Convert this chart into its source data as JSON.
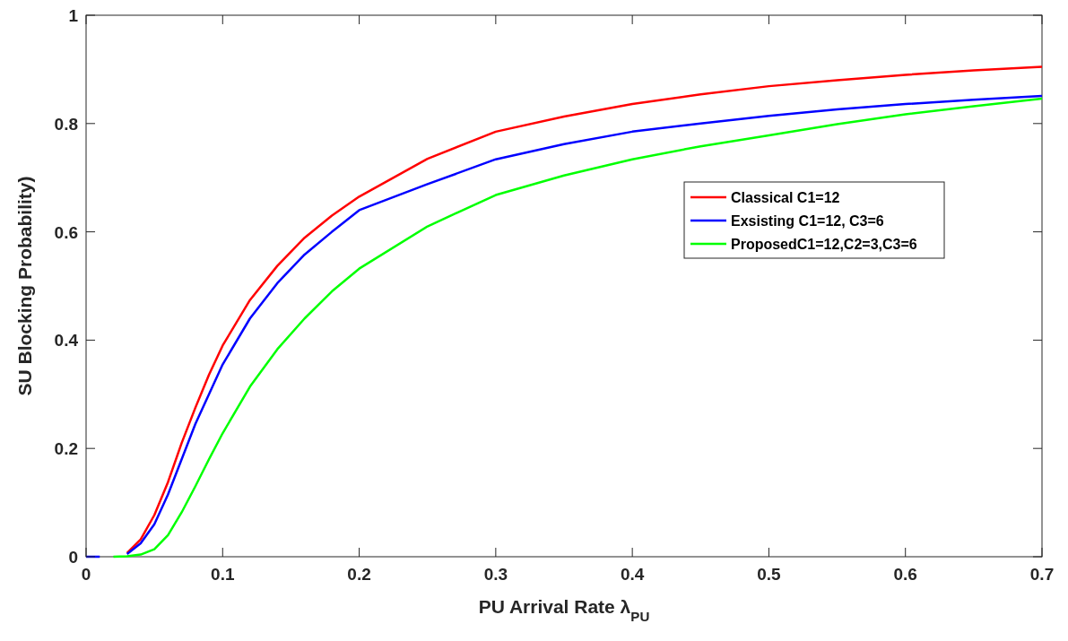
{
  "chart_data": {
    "type": "line",
    "xlabel": "PU Arrival Rate λ$_{PU}$",
    "ylabel": "SU Blocking Probability)",
    "x": [
      0,
      0.01,
      0.02,
      0.03,
      0.04,
      0.05,
      0.06,
      0.07,
      0.08,
      0.09,
      0.1,
      0.12,
      0.14,
      0.16,
      0.18,
      0.2,
      0.25,
      0.3,
      0.35,
      0.4,
      0.45,
      0.5,
      0.55,
      0.6,
      0.65,
      0.7
    ],
    "series": [
      {
        "name": "Classical C1=12",
        "color": "#ff0000",
        "values": [
          null,
          null,
          null,
          0.007,
          0.032,
          0.077,
          0.138,
          0.21,
          0.275,
          0.336,
          0.39,
          0.474,
          0.537,
          0.589,
          0.63,
          0.665,
          0.735,
          0.785,
          0.813,
          0.836,
          0.854,
          0.869,
          0.88,
          0.89,
          0.898,
          0.905
        ]
      },
      {
        "name": "Exsisting C1=12, C3=6",
        "color": "#0000ff",
        "values": [
          0,
          0,
          null,
          0.005,
          0.025,
          0.06,
          0.115,
          0.18,
          0.245,
          0.3,
          0.355,
          0.44,
          0.505,
          0.558,
          0.6,
          0.64,
          0.688,
          0.734,
          0.762,
          0.785,
          0.8,
          0.814,
          0.826,
          0.836,
          0.844,
          0.851
        ]
      },
      {
        "name": "ProposedC1=12,C2=3,C3=6",
        "color": "#00ff00",
        "values": [
          null,
          null,
          0,
          0.001,
          0.004,
          0.014,
          0.04,
          0.082,
          0.13,
          0.18,
          0.228,
          0.314,
          0.383,
          0.44,
          0.49,
          0.532,
          0.61,
          0.668,
          0.704,
          0.734,
          0.758,
          0.778,
          0.799,
          0.817,
          0.832,
          0.846
        ]
      }
    ],
    "xlim": [
      0,
      0.7
    ],
    "xticks": [
      0,
      0.1,
      0.2,
      0.3,
      0.4,
      0.5,
      0.6,
      0.7
    ],
    "ylim": [
      0,
      1
    ],
    "yticks": [
      0,
      0.2,
      0.4,
      0.6,
      0.8,
      1
    ],
    "grid": false,
    "legend": "right",
    "line_style": "solid"
  }
}
